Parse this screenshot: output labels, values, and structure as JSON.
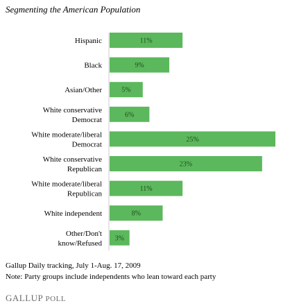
{
  "chart_data": {
    "type": "bar",
    "orientation": "horizontal",
    "title": "Segmenting the American Population",
    "categories": [
      [
        "Hispanic"
      ],
      [
        "Black"
      ],
      [
        "Asian/Other"
      ],
      [
        "White conservative",
        "Democrat"
      ],
      [
        "White moderate/liberal",
        "Democrat"
      ],
      [
        "White conservative",
        "Republican"
      ],
      [
        "White moderate/liberal",
        "Republican"
      ],
      [
        "White independent"
      ],
      [
        "Other/Don't",
        "know/Refused"
      ]
    ],
    "values": [
      11,
      9,
      5,
      6,
      25,
      23,
      11,
      8,
      3
    ],
    "value_labels": [
      "11%",
      "9%",
      "5%",
      "6%",
      "25%",
      "23%",
      "11%",
      "8%",
      "3%"
    ],
    "value_unit": "%",
    "xlim": [
      0,
      25
    ],
    "bar_color": "#5cb85c",
    "grid": false,
    "legend": "none"
  },
  "notes": {
    "source": "Gallup Daily tracking, July 1-Aug. 17, 2009",
    "party": "Note: Party groups include independents who lean toward each party"
  },
  "brand": {
    "main": "GALLUP",
    "sub": "POLL"
  }
}
